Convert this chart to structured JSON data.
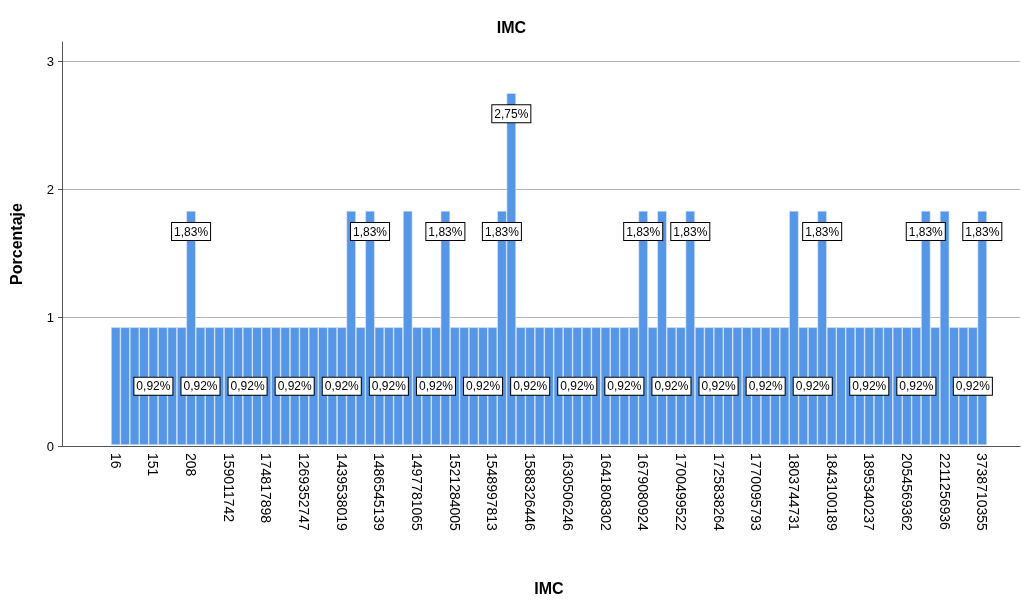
{
  "chart_data": {
    "type": "bar",
    "title": "IMC",
    "xlabel": "IMC",
    "ylabel": "Porcentaje",
    "color": "#5596e6",
    "categories": [
      "16",
      null,
      null,
      null,
      "151",
      null,
      null,
      null,
      "208",
      null,
      null,
      null,
      "159011742",
      null,
      null,
      null,
      "174817898",
      null,
      null,
      null,
      "1269352747",
      null,
      null,
      null,
      "1439538019",
      null,
      null,
      null,
      "1486545139",
      null,
      null,
      null,
      "1497781065",
      null,
      null,
      null,
      "1521284005",
      null,
      null,
      null,
      "1548997813",
      null,
      null,
      null,
      "1588326446",
      null,
      null,
      null,
      "1630506246",
      null,
      null,
      null,
      "1641808302",
      null,
      null,
      null,
      "1679080924",
      null,
      null,
      null,
      "1700499522",
      null,
      null,
      null,
      "1725838264",
      null,
      null,
      null,
      "1770095793",
      null,
      null,
      null,
      "1803744731",
      null,
      null,
      null,
      "1843100189",
      null,
      null,
      null,
      "1895340237",
      null,
      null,
      null,
      "2054569362",
      null,
      null,
      null,
      "2211256936",
      null,
      null,
      null,
      "3738710355"
    ],
    "values": [
      0.92,
      0.92,
      0.92,
      0.92,
      0.92,
      0.92,
      0.92,
      0.92,
      1.83,
      0.92,
      0.92,
      0.92,
      0.92,
      0.92,
      0.92,
      0.92,
      0.92,
      0.92,
      0.92,
      0.92,
      0.92,
      0.92,
      0.92,
      0.92,
      0.92,
      1.83,
      0.92,
      1.83,
      0.92,
      0.92,
      0.92,
      1.83,
      0.92,
      0.92,
      0.92,
      1.83,
      0.92,
      0.92,
      0.92,
      0.92,
      0.92,
      1.83,
      2.75,
      0.92,
      0.92,
      0.92,
      0.92,
      0.92,
      0.92,
      0.92,
      0.92,
      0.92,
      0.92,
      0.92,
      0.92,
      0.92,
      1.83,
      0.92,
      1.83,
      0.92,
      0.92,
      1.83,
      0.92,
      0.92,
      0.92,
      0.92,
      0.92,
      0.92,
      0.92,
      0.92,
      0.92,
      0.92,
      1.83,
      0.92,
      0.92,
      1.83,
      0.92,
      0.92,
      0.92,
      0.92,
      0.92,
      0.92,
      0.92,
      0.92,
      0.92,
      0.92,
      1.83,
      0.92,
      1.83,
      0.92,
      0.92,
      0.92,
      1.83
    ],
    "value_labels": [
      null,
      null,
      null,
      null,
      "0,92%",
      null,
      null,
      null,
      "1,83%",
      "0,92%",
      null,
      null,
      null,
      null,
      "0,92%",
      null,
      null,
      null,
      null,
      "0,92%",
      null,
      null,
      null,
      null,
      "0,92%",
      null,
      null,
      "1,83%",
      null,
      "0,92%",
      null,
      null,
      null,
      null,
      "0,92%",
      "1,83%",
      null,
      null,
      null,
      "0,92%",
      null,
      "1,83%",
      "2,75%",
      null,
      "0,92%",
      null,
      null,
      null,
      null,
      "0,92%",
      null,
      null,
      null,
      null,
      "0,92%",
      null,
      "1,83%",
      null,
      null,
      "0,92%",
      null,
      "1,83%",
      null,
      null,
      "0,92%",
      null,
      null,
      null,
      null,
      "0,92%",
      null,
      null,
      null,
      null,
      "0,92%",
      "1,83%",
      null,
      null,
      null,
      null,
      "0,92%",
      null,
      null,
      null,
      null,
      "0,92%",
      "1,83%",
      null,
      null,
      null,
      null,
      "0,92%",
      "1,83%"
    ],
    "ylim": [
      0,
      3.15
    ],
    "yticks": [
      0,
      1,
      2,
      3
    ],
    "grid": "y"
  }
}
